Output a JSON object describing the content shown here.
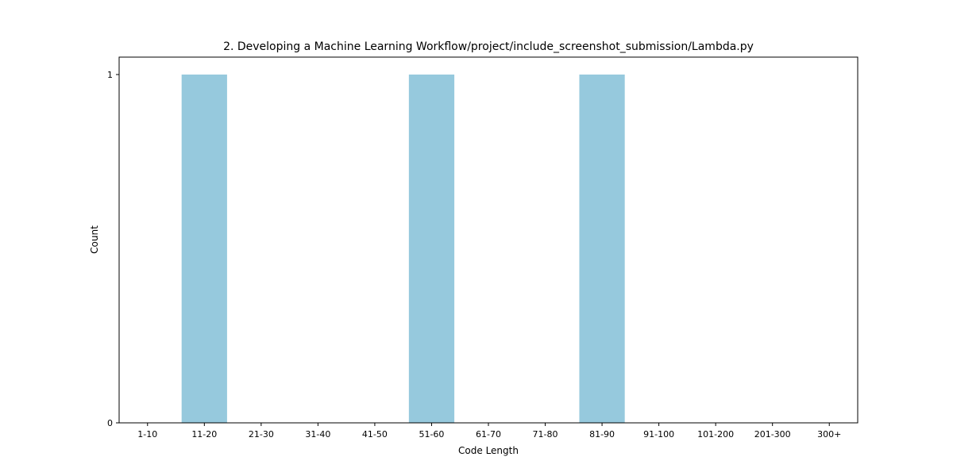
{
  "chart_data": {
    "type": "bar",
    "title": "2. Developing a Machine Learning Workflow/project/include_screenshot_submission/Lambda.py",
    "xlabel": "Code Length",
    "ylabel": "Count",
    "categories": [
      "1-10",
      "11-20",
      "21-30",
      "31-40",
      "41-50",
      "51-60",
      "61-70",
      "71-80",
      "81-90",
      "91-100",
      "101-200",
      "201-300",
      "300+"
    ],
    "values": [
      0,
      1,
      0,
      0,
      0,
      1,
      0,
      0,
      1,
      0,
      0,
      0,
      0
    ],
    "ylim": [
      0,
      1.05
    ],
    "yticks": [
      0,
      1
    ],
    "grid": false,
    "legend": "none",
    "bar_color": "#96c9dd",
    "axis_color": "#000000"
  }
}
